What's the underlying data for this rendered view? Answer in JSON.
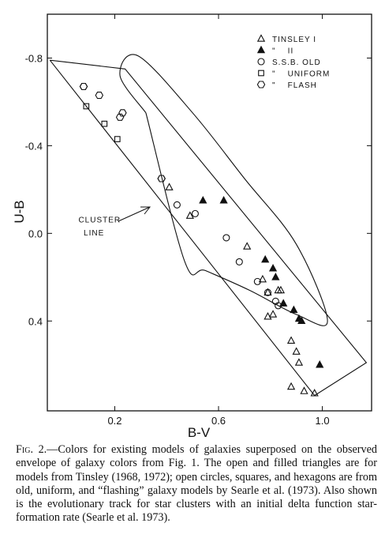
{
  "chart_data": {
    "type": "scatter",
    "xlabel": "B-V",
    "ylabel": "U-B",
    "xlim": [
      -0.06,
      1.19
    ],
    "ylim": [
      0.81,
      -1.0
    ],
    "y_reversed": true,
    "x_ticks": [
      0.2,
      0.6,
      1.0
    ],
    "x_tick_labels": [
      "0.2",
      "0.6",
      "1.0"
    ],
    "y_ticks": [
      -0.8,
      -0.4,
      0.0,
      0.4
    ],
    "y_tick_labels": [
      "-0.8",
      "-0.4",
      "0.0",
      "0.4"
    ],
    "grid": false,
    "legend_position": "top-right",
    "series": [
      {
        "name": "TINSLEY I",
        "marker": "open-triangle",
        "points": [
          [
            0.41,
            -0.21
          ],
          [
            0.49,
            -0.08
          ],
          [
            0.71,
            0.06
          ],
          [
            0.77,
            0.21
          ],
          [
            0.79,
            0.27
          ],
          [
            0.83,
            0.26
          ],
          [
            0.84,
            0.26
          ],
          [
            0.81,
            0.37
          ],
          [
            0.79,
            0.38
          ],
          [
            0.88,
            0.49
          ],
          [
            0.9,
            0.54
          ],
          [
            0.91,
            0.59
          ],
          [
            0.88,
            0.7
          ],
          [
            0.93,
            0.72
          ],
          [
            0.97,
            0.73
          ]
        ]
      },
      {
        "name": "\"    II",
        "marker": "filled-triangle",
        "points": [
          [
            0.54,
            -0.15
          ],
          [
            0.62,
            -0.15
          ],
          [
            0.78,
            0.12
          ],
          [
            0.81,
            0.16
          ],
          [
            0.82,
            0.2
          ],
          [
            0.85,
            0.32
          ],
          [
            0.89,
            0.35
          ],
          [
            0.91,
            0.39
          ],
          [
            0.92,
            0.4
          ],
          [
            0.99,
            0.6
          ]
        ]
      },
      {
        "name": "S.S.B. OLD",
        "marker": "open-circle",
        "points": [
          [
            0.44,
            -0.13
          ],
          [
            0.51,
            -0.09
          ],
          [
            0.63,
            0.02
          ],
          [
            0.68,
            0.13
          ],
          [
            0.75,
            0.22
          ],
          [
            0.79,
            0.27
          ],
          [
            0.82,
            0.31
          ],
          [
            0.83,
            0.33
          ]
        ]
      },
      {
        "name": "\"    UNIFORM",
        "marker": "open-square",
        "points": [
          [
            0.09,
            -0.58
          ],
          [
            0.16,
            -0.5
          ],
          [
            0.21,
            -0.43
          ]
        ]
      },
      {
        "name": "\"    FLASH",
        "marker": "open-hexagon",
        "points": [
          [
            0.08,
            -0.67
          ],
          [
            0.08,
            -0.67
          ],
          [
            0.14,
            -0.63
          ],
          [
            0.22,
            -0.53
          ],
          [
            0.23,
            -0.55
          ],
          [
            0.38,
            -0.25
          ],
          [
            0.38,
            -0.25
          ]
        ]
      }
    ],
    "envelope_outline": [
      [
        -0.05,
        -0.79
      ],
      [
        0.97,
        0.74
      ],
      [
        1.17,
        0.59
      ],
      [
        0.24,
        -0.75
      ],
      [
        -0.05,
        -0.79
      ]
    ],
    "cluster_track": [
      [
        0.32,
        -0.55
      ],
      [
        0.22,
        -0.72
      ],
      [
        0.29,
        -0.81
      ],
      [
        0.5,
        -0.55
      ],
      [
        0.7,
        -0.25
      ],
      [
        0.9,
        0.05
      ],
      [
        1.02,
        0.4
      ],
      [
        0.9,
        0.37
      ],
      [
        0.72,
        0.26
      ],
      [
        0.55,
        0.17
      ],
      [
        0.47,
        0.13
      ],
      [
        0.32,
        -0.55
      ]
    ],
    "annotations": [
      {
        "text": "CLUSTER",
        "x": 0.06,
        "y": -0.05
      },
      {
        "text": "LINE",
        "x": 0.08,
        "y": 0.01
      }
    ]
  },
  "caption": {
    "label": "Fig. 2.",
    "dash": "—",
    "text": "Colors for existing models of galaxies superposed on the observed envelope of galaxy colors from Fig. 1. The open and filled triangles are for models from Tinsley (1968, 1972); open circles, squares, and hexagons are from old, uniform, and “flashing” galaxy models by Searle et al. (1973). Also shown is the evolutionary track for star clusters with an initial delta function star-formation rate (Searle et al. 1973)."
  }
}
